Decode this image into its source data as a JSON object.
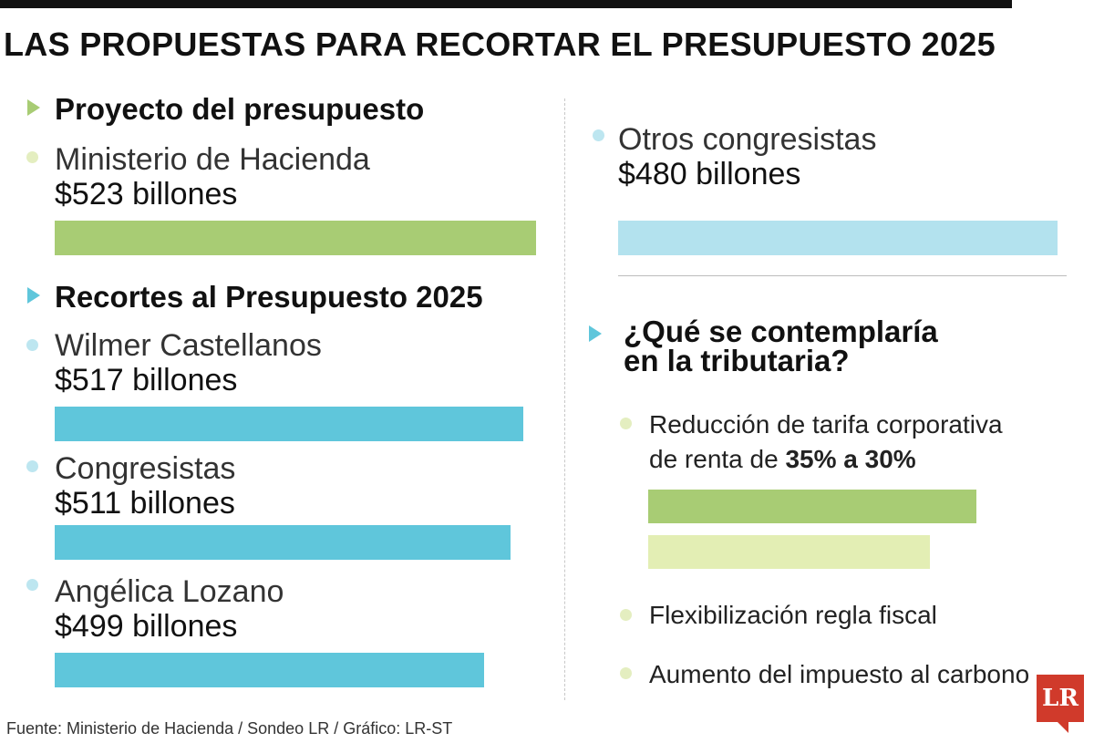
{
  "title": "LAS PROPUESTAS PARA RECORTAR EL PRESUPUESTO 2025",
  "footer": "Fuente: Ministerio de Hacienda / Sondeo LR / Gráfico: LR-ST",
  "logo_text": "LR",
  "colors": {
    "green": "#a8cc74",
    "blue": "#5fc6db",
    "light_blue": "#b3e2ee",
    "light_green": "#e3eeb4",
    "dot_green": "#e4eec0",
    "dot_blue": "#bde6f0"
  },
  "sections": {
    "proyecto": "Proyecto del presupuesto",
    "recortes": "Recortes al Presupuesto 2025",
    "tributaria_line1": "¿Qué se contemplaría",
    "tributaria_line2": "en la tributaria?"
  },
  "chart_data": {
    "type": "bar",
    "title": "LAS PROPUESTAS PARA RECORTAR EL PRESUPUESTO 2025",
    "unit": "billones",
    "categories": [
      "Ministerio de Hacienda",
      "Wilmer Castellanos",
      "Congresistas",
      "Angélica Lozano",
      "Otros congresistas"
    ],
    "values": [
      523,
      517,
      511,
      499,
      480
    ],
    "value_labels": [
      "$523 billones",
      "$517 billones",
      "$511 billones",
      "$499 billones",
      "$480 billones"
    ],
    "groups": [
      "Proyecto del presupuesto",
      "Recortes al Presupuesto 2025",
      "Recortes al Presupuesto 2025",
      "Recortes al Presupuesto 2025",
      "Recortes al Presupuesto 2025"
    ]
  },
  "tributaria": {
    "item1_line1": "Reducción de tarifa corporativa",
    "item1_line2_prefix": "de renta de ",
    "item1_line2_bold": "35% a 30%",
    "rate_from": 35,
    "rate_to": 30,
    "item2": "Flexibilización regla fiscal",
    "item3": "Aumento del impuesto al carbono"
  }
}
